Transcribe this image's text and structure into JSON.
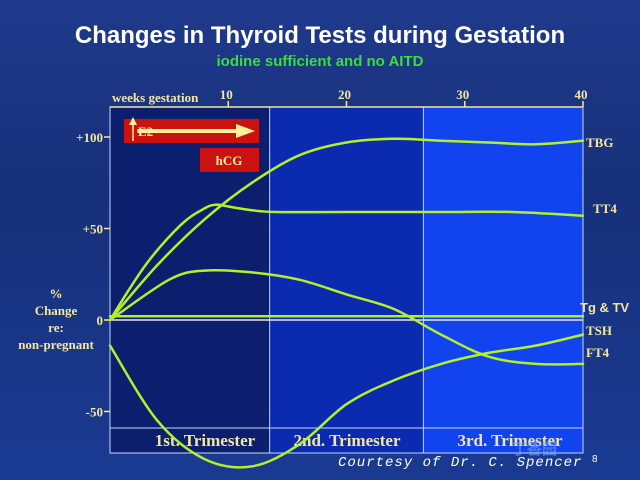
{
  "slide": {
    "title": "Changes in Thyroid Tests during Gestation",
    "subtitle": "iodine sufficient and no AITD",
    "credit": "Courtesy of Dr.  C.  Spencer",
    "slide_number": "8",
    "watermark": "丁香园"
  },
  "colors": {
    "background": "#1a3588",
    "plot_first_trimester": "#0b1f6e",
    "plot_second_trimester": "#0a2bb0",
    "plot_third_trimester": "#1144ee",
    "curve": "#b4f02a",
    "label_tan": "#f3e7a0",
    "title": "#ffffff",
    "subtitle": "#3cdc3c",
    "marker_fill": "#cc1111"
  },
  "chart_data": {
    "type": "line",
    "title": "Changes in Thyroid Tests during Gestation",
    "subtitle": "iodine sufficient and no AITD",
    "xlabel": "weeks gestation",
    "ylabel": "% Change re: non-pregnant",
    "ylabel_lines": [
      "%",
      "Change",
      "re:",
      "non-pregnant"
    ],
    "xlim": [
      0,
      40
    ],
    "ylim": [
      -82,
      112
    ],
    "x_ticks": [
      10,
      20,
      30,
      40
    ],
    "x_tick_labels": [
      "10",
      "20",
      "30",
      "40"
    ],
    "y_ticks": [
      100,
      50,
      0,
      -50
    ],
    "y_tick_labels": [
      "+100",
      "+50",
      "0",
      "-50"
    ],
    "grid": false,
    "trimesters": [
      {
        "label": "1st. Trimester",
        "start": 0,
        "end": 13.5
      },
      {
        "label": "2nd. Trimester",
        "start": 13.5,
        "end": 26.5
      },
      {
        "label": "3rd. Trimester",
        "start": 26.5,
        "end": 40
      }
    ],
    "annotations": [
      {
        "label": "E2",
        "type": "arrow",
        "x_start": 1.3,
        "x_end": 12
      },
      {
        "label": "hCG",
        "type": "box",
        "x": 9.9
      }
    ],
    "series": [
      {
        "name": "TBG",
        "x": [
          0,
          4,
          8,
          12,
          16,
          20,
          24,
          28,
          32,
          36,
          40
        ],
        "y": [
          0,
          30,
          55,
          75,
          90,
          97,
          99,
          98,
          97,
          96,
          98
        ]
      },
      {
        "name": "TT4",
        "x": [
          0,
          3,
          6,
          8,
          9,
          10,
          12,
          14,
          20,
          28,
          34,
          40
        ],
        "y": [
          0,
          30,
          52,
          61,
          63,
          62,
          60,
          59,
          59,
          59,
          59,
          57
        ]
      },
      {
        "name": "Tg & TV",
        "x": [
          0,
          40
        ],
        "y": [
          2,
          2
        ]
      },
      {
        "name": "TSH",
        "x": [
          0,
          5,
          8,
          12,
          16,
          20,
          24,
          28,
          32,
          36,
          40
        ],
        "y": [
          0,
          22,
          27,
          26,
          22,
          14,
          6,
          -8,
          -20,
          -24,
          -24
        ]
      },
      {
        "name": "FT4",
        "x": [
          0,
          4,
          8,
          12,
          16,
          20,
          24,
          28,
          32,
          36,
          40
        ],
        "y": [
          -14,
          -55,
          -76,
          -80,
          -68,
          -46,
          -33,
          -24,
          -18,
          -14,
          -8
        ]
      }
    ],
    "series_labels": {
      "TBG": "TBG",
      "TT4": "TT4",
      "Tg & TV": "Tg & TV",
      "TSH": "TSH",
      "FT4": "FT4"
    }
  }
}
